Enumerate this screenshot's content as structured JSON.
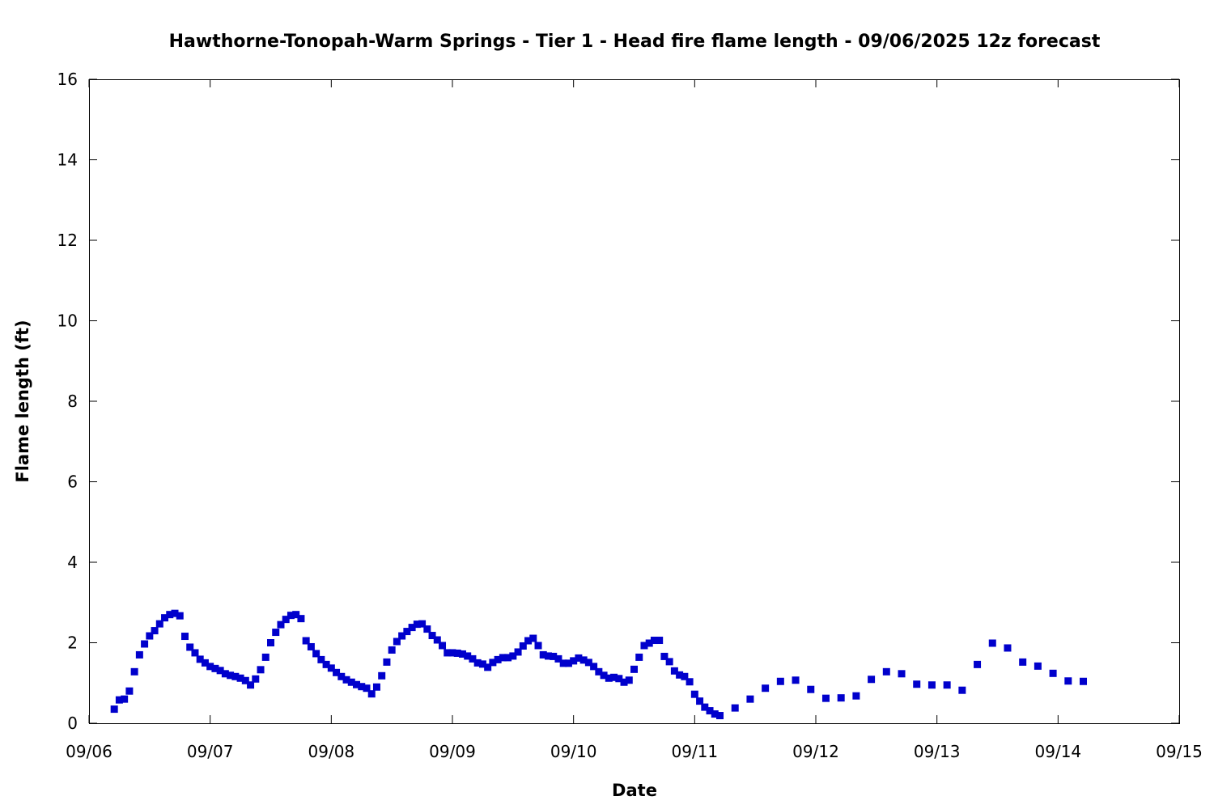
{
  "chart_data": {
    "type": "scatter",
    "title": "Hawthorne-Tonopah-Warm Springs - Tier 1 - Head fire flame length - 09/06/2025 12z forecast",
    "xlabel": "Date",
    "ylabel": "Flame length (ft)",
    "xlim": [
      "09/06",
      "09/15"
    ],
    "ylim": [
      0,
      16
    ],
    "x_ticks": [
      "09/06",
      "09/07",
      "09/08",
      "09/09",
      "09/10",
      "09/11",
      "09/12",
      "09/13",
      "09/14",
      "09/15"
    ],
    "y_ticks": [
      "0",
      "2",
      "4",
      "6",
      "8",
      "10",
      "12",
      "14",
      "16"
    ],
    "grid": false,
    "legend": "none",
    "marker_color": "#0000cc",
    "series": [
      {
        "points": [
          [
            "09/06 05:00",
            0.35
          ],
          [
            "09/06 06:00",
            0.58
          ],
          [
            "09/06 07:00",
            0.6
          ],
          [
            "09/06 08:00",
            0.8
          ],
          [
            "09/06 09:00",
            1.28
          ],
          [
            "09/06 10:00",
            1.7
          ],
          [
            "09/06 11:00",
            1.97
          ],
          [
            "09/06 12:00",
            2.17
          ],
          [
            "09/06 13:00",
            2.3
          ],
          [
            "09/06 14:00",
            2.47
          ],
          [
            "09/06 15:00",
            2.62
          ],
          [
            "09/06 16:00",
            2.7
          ],
          [
            "09/06 17:00",
            2.73
          ],
          [
            "09/06 18:00",
            2.67
          ],
          [
            "09/06 19:00",
            2.16
          ],
          [
            "09/06 20:00",
            1.89
          ],
          [
            "09/06 21:00",
            1.75
          ],
          [
            "09/06 22:00",
            1.59
          ],
          [
            "09/06 23:00",
            1.5
          ],
          [
            "09/07 00:00",
            1.41
          ],
          [
            "09/07 01:00",
            1.36
          ],
          [
            "09/07 02:00",
            1.31
          ],
          [
            "09/07 03:00",
            1.23
          ],
          [
            "09/07 04:00",
            1.19
          ],
          [
            "09/07 05:00",
            1.16
          ],
          [
            "09/07 06:00",
            1.12
          ],
          [
            "09/07 07:00",
            1.06
          ],
          [
            "09/07 08:00",
            0.95
          ],
          [
            "09/07 09:00",
            1.1
          ],
          [
            "09/07 10:00",
            1.33
          ],
          [
            "09/07 11:00",
            1.64
          ],
          [
            "09/07 12:00",
            2.0
          ],
          [
            "09/07 13:00",
            2.26
          ],
          [
            "09/07 14:00",
            2.45
          ],
          [
            "09/07 15:00",
            2.58
          ],
          [
            "09/07 16:00",
            2.68
          ],
          [
            "09/07 17:00",
            2.7
          ],
          [
            "09/07 18:00",
            2.6
          ],
          [
            "09/07 19:00",
            2.05
          ],
          [
            "09/07 20:00",
            1.9
          ],
          [
            "09/07 21:00",
            1.73
          ],
          [
            "09/07 22:00",
            1.58
          ],
          [
            "09/07 23:00",
            1.46
          ],
          [
            "09/08 00:00",
            1.37
          ],
          [
            "09/08 01:00",
            1.26
          ],
          [
            "09/08 02:00",
            1.16
          ],
          [
            "09/08 03:00",
            1.08
          ],
          [
            "09/08 04:00",
            1.02
          ],
          [
            "09/08 05:00",
            0.96
          ],
          [
            "09/08 06:00",
            0.91
          ],
          [
            "09/08 07:00",
            0.87
          ],
          [
            "09/08 08:00",
            0.73
          ],
          [
            "09/08 09:00",
            0.9
          ],
          [
            "09/08 10:00",
            1.18
          ],
          [
            "09/08 11:00",
            1.52
          ],
          [
            "09/08 12:00",
            1.82
          ],
          [
            "09/08 13:00",
            2.03
          ],
          [
            "09/08 14:00",
            2.17
          ],
          [
            "09/08 15:00",
            2.28
          ],
          [
            "09/08 16:00",
            2.38
          ],
          [
            "09/08 17:00",
            2.46
          ],
          [
            "09/08 18:00",
            2.47
          ],
          [
            "09/08 19:00",
            2.34
          ],
          [
            "09/08 20:00",
            2.18
          ],
          [
            "09/08 21:00",
            2.07
          ],
          [
            "09/08 22:00",
            1.93
          ],
          [
            "09/08 23:00",
            1.75
          ],
          [
            "09/09 00:00",
            1.75
          ],
          [
            "09/09 01:00",
            1.74
          ],
          [
            "09/09 02:00",
            1.72
          ],
          [
            "09/09 03:00",
            1.67
          ],
          [
            "09/09 04:00",
            1.6
          ],
          [
            "09/09 05:00",
            1.5
          ],
          [
            "09/09 06:00",
            1.47
          ],
          [
            "09/09 07:00",
            1.39
          ],
          [
            "09/09 08:00",
            1.51
          ],
          [
            "09/09 09:00",
            1.58
          ],
          [
            "09/09 10:00",
            1.63
          ],
          [
            "09/09 11:00",
            1.63
          ],
          [
            "09/09 12:00",
            1.67
          ],
          [
            "09/09 13:00",
            1.77
          ],
          [
            "09/09 14:00",
            1.92
          ],
          [
            "09/09 15:00",
            2.05
          ],
          [
            "09/09 16:00",
            2.11
          ],
          [
            "09/09 17:00",
            1.93
          ],
          [
            "09/09 18:00",
            1.7
          ],
          [
            "09/09 19:00",
            1.67
          ],
          [
            "09/09 20:00",
            1.66
          ],
          [
            "09/09 21:00",
            1.6
          ],
          [
            "09/09 22:00",
            1.49
          ],
          [
            "09/09 23:00",
            1.49
          ],
          [
            "09/10 00:00",
            1.55
          ],
          [
            "09/10 01:00",
            1.62
          ],
          [
            "09/10 02:00",
            1.57
          ],
          [
            "09/10 03:00",
            1.51
          ],
          [
            "09/10 04:00",
            1.41
          ],
          [
            "09/10 05:00",
            1.28
          ],
          [
            "09/10 06:00",
            1.19
          ],
          [
            "09/10 07:00",
            1.12
          ],
          [
            "09/10 08:00",
            1.14
          ],
          [
            "09/10 09:00",
            1.11
          ],
          [
            "09/10 10:00",
            1.02
          ],
          [
            "09/10 11:00",
            1.07
          ],
          [
            "09/10 12:00",
            1.34
          ],
          [
            "09/10 13:00",
            1.64
          ],
          [
            "09/10 14:00",
            1.93
          ],
          [
            "09/10 15:00",
            1.99
          ],
          [
            "09/10 16:00",
            2.06
          ],
          [
            "09/10 17:00",
            2.06
          ],
          [
            "09/10 18:00",
            1.66
          ],
          [
            "09/10 19:00",
            1.53
          ],
          [
            "09/10 20:00",
            1.3
          ],
          [
            "09/10 21:00",
            1.2
          ],
          [
            "09/10 22:00",
            1.16
          ],
          [
            "09/10 23:00",
            1.03
          ],
          [
            "09/11 00:00",
            0.72
          ],
          [
            "09/11 01:00",
            0.55
          ],
          [
            "09/11 02:00",
            0.4
          ],
          [
            "09/11 03:00",
            0.31
          ],
          [
            "09/11 04:00",
            0.23
          ],
          [
            "09/11 05:00",
            0.19
          ],
          [
            "09/11 08:00",
            0.38
          ],
          [
            "09/11 11:00",
            0.6
          ],
          [
            "09/11 14:00",
            0.87
          ],
          [
            "09/11 17:00",
            1.04
          ],
          [
            "09/11 20:00",
            1.07
          ],
          [
            "09/11 23:00",
            0.84
          ],
          [
            "09/12 02:00",
            0.62
          ],
          [
            "09/12 05:00",
            0.63
          ],
          [
            "09/12 08:00",
            0.68
          ],
          [
            "09/12 11:00",
            1.09
          ],
          [
            "09/12 14:00",
            1.28
          ],
          [
            "09/12 17:00",
            1.23
          ],
          [
            "09/12 20:00",
            0.97
          ],
          [
            "09/12 23:00",
            0.95
          ],
          [
            "09/13 02:00",
            0.95
          ],
          [
            "09/13 05:00",
            0.82
          ],
          [
            "09/13 08:00",
            1.46
          ],
          [
            "09/13 11:00",
            1.99
          ],
          [
            "09/13 14:00",
            1.87
          ],
          [
            "09/13 17:00",
            1.52
          ],
          [
            "09/13 20:00",
            1.42
          ],
          [
            "09/13 23:00",
            1.24
          ],
          [
            "09/14 02:00",
            1.05
          ],
          [
            "09/14 05:00",
            1.04
          ]
        ]
      }
    ]
  }
}
